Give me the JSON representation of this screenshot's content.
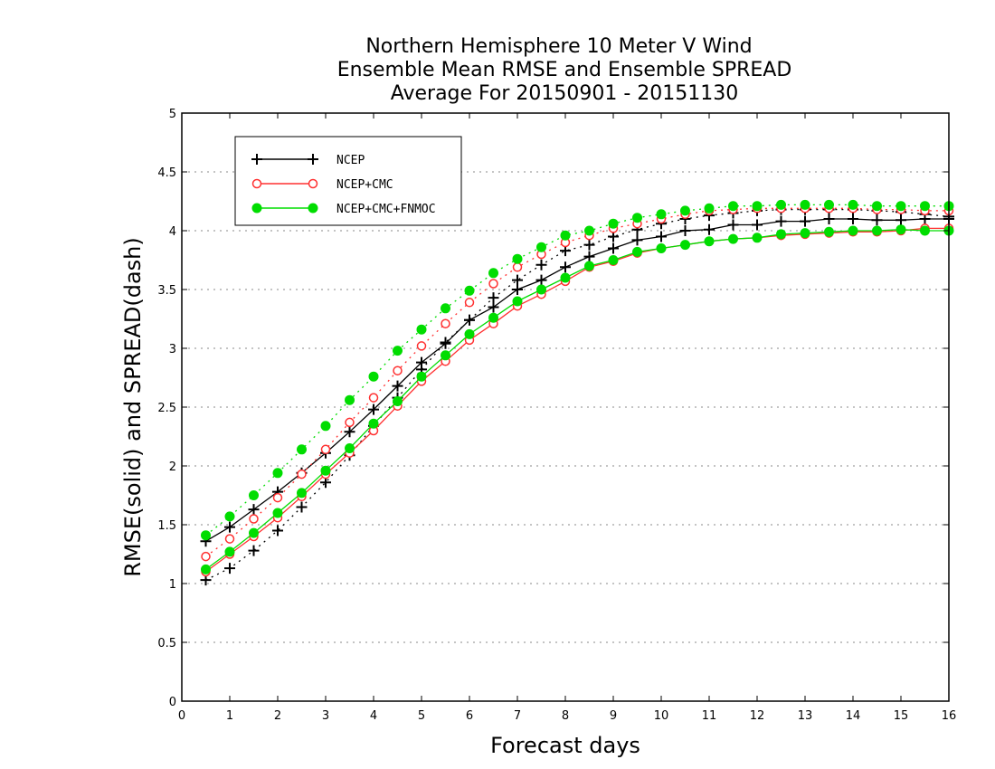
{
  "chart_data": {
    "type": "line",
    "title_lines": [
      "Northern Hemisphere 10 Meter V Wind",
      "Ensemble Mean RMSE and Ensemble SPREAD",
      "Average For 20150901 - 20151130"
    ],
    "xlabel": "Forecast days",
    "ylabel": "RMSE(solid) and SPREAD(dash)",
    "xlim": [
      0,
      16
    ],
    "ylim": [
      0,
      5
    ],
    "x_ticks": [
      "0",
      "1",
      "2",
      "3",
      "4",
      "5",
      "6",
      "7",
      "8",
      "9",
      "10",
      "11",
      "12",
      "13",
      "14",
      "15",
      "16"
    ],
    "y_ticks": [
      "0",
      "0.5",
      "1",
      "1.5",
      "2",
      "2.5",
      "3",
      "3.5",
      "4",
      "4.5",
      "5"
    ],
    "grid": true,
    "legend_position": "top-left",
    "x": [
      0.5,
      1,
      1.5,
      2,
      2.5,
      3,
      3.5,
      4,
      4.5,
      5,
      5.5,
      6,
      6.5,
      7,
      7.5,
      8,
      8.5,
      9,
      9.5,
      10,
      10.5,
      11,
      11.5,
      12,
      12.5,
      13,
      13.5,
      14,
      14.5,
      15,
      15.5,
      16
    ],
    "series": [
      {
        "name": "NCEP",
        "color": "#000000",
        "marker": "plus",
        "rmse": [
          1.36,
          1.48,
          1.63,
          1.78,
          1.94,
          2.11,
          2.29,
          2.48,
          2.68,
          2.88,
          3.04,
          3.24,
          3.35,
          3.5,
          3.58,
          3.69,
          3.78,
          3.85,
          3.92,
          3.95,
          4.0,
          4.01,
          4.05,
          4.05,
          4.08,
          4.08,
          4.1,
          4.1,
          4.09,
          4.09,
          4.1,
          4.1
        ],
        "spread": [
          1.03,
          1.13,
          1.28,
          1.45,
          1.65,
          1.86,
          2.09,
          2.34,
          2.58,
          2.82,
          3.05,
          3.24,
          3.43,
          3.58,
          3.71,
          3.83,
          3.88,
          3.95,
          4.01,
          4.06,
          4.1,
          4.13,
          4.15,
          4.17,
          4.18,
          4.18,
          4.18,
          4.18,
          4.17,
          4.16,
          4.14,
          4.12
        ]
      },
      {
        "name": "NCEP+CMC",
        "color": "#ff3030",
        "marker": "open-circle",
        "rmse": [
          1.1,
          1.25,
          1.4,
          1.56,
          1.74,
          1.93,
          2.11,
          2.3,
          2.51,
          2.72,
          2.89,
          3.07,
          3.21,
          3.36,
          3.46,
          3.57,
          3.69,
          3.74,
          3.81,
          3.85,
          3.88,
          3.91,
          3.93,
          3.94,
          3.96,
          3.97,
          3.98,
          3.99,
          3.99,
          4.0,
          4.02,
          4.02
        ],
        "spread": [
          1.23,
          1.38,
          1.55,
          1.73,
          1.93,
          2.14,
          2.37,
          2.58,
          2.81,
          3.02,
          3.21,
          3.39,
          3.55,
          3.69,
          3.8,
          3.9,
          3.96,
          4.02,
          4.06,
          4.1,
          4.14,
          4.17,
          4.18,
          4.19,
          4.19,
          4.19,
          4.19,
          4.19,
          4.18,
          4.18,
          4.17,
          4.17
        ]
      },
      {
        "name": "NCEP+CMC+FNMOC",
        "color": "#00dd00",
        "marker": "filled-circle",
        "rmse": [
          1.12,
          1.27,
          1.43,
          1.6,
          1.77,
          1.96,
          2.15,
          2.36,
          2.55,
          2.76,
          2.94,
          3.12,
          3.26,
          3.4,
          3.5,
          3.6,
          3.7,
          3.75,
          3.82,
          3.85,
          3.88,
          3.91,
          3.93,
          3.94,
          3.97,
          3.98,
          3.99,
          4.0,
          4.0,
          4.01,
          4.0,
          4.0
        ],
        "spread": [
          1.41,
          1.57,
          1.75,
          1.94,
          2.14,
          2.34,
          2.56,
          2.76,
          2.98,
          3.16,
          3.34,
          3.49,
          3.64,
          3.76,
          3.86,
          3.96,
          4.0,
          4.06,
          4.11,
          4.14,
          4.17,
          4.19,
          4.21,
          4.21,
          4.22,
          4.22,
          4.22,
          4.22,
          4.21,
          4.21,
          4.21,
          4.21
        ]
      }
    ]
  }
}
